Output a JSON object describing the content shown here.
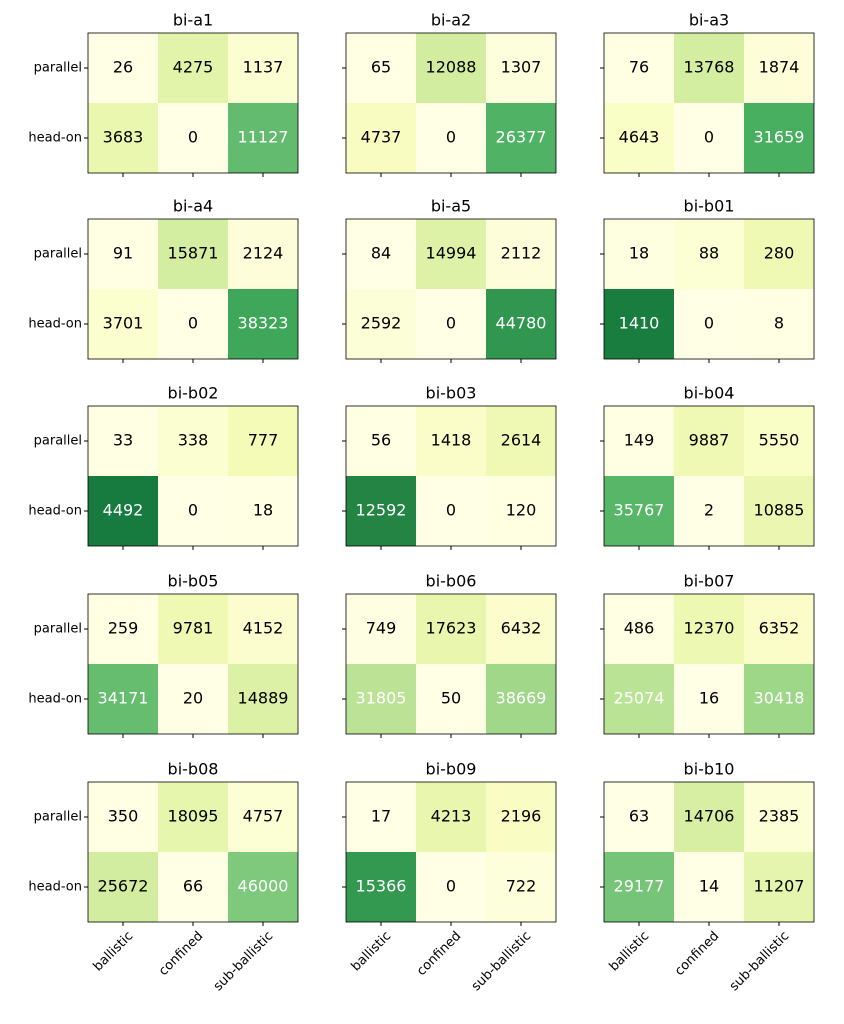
{
  "chart_data": [
    {
      "type": "heatmap",
      "title": "bi-a1",
      "colormap": "YlGn",
      "y_categories": [
        "parallel",
        "head-on"
      ],
      "values": [
        [
          26,
          4275,
          1137
        ],
        [
          3683,
          0,
          11127
        ]
      ]
    },
    {
      "type": "heatmap",
      "title": "bi-a2",
      "colormap": "YlGn",
      "values": [
        [
          65,
          12088,
          1307
        ],
        [
          4737,
          0,
          26377
        ]
      ]
    },
    {
      "type": "heatmap",
      "title": "bi-a3",
      "colormap": "YlGn",
      "values": [
        [
          76,
          13768,
          1874
        ],
        [
          4643,
          0,
          31659
        ]
      ]
    },
    {
      "type": "heatmap",
      "title": "bi-a4",
      "colormap": "YlGn",
      "y_categories": [
        "parallel",
        "head-on"
      ],
      "values": [
        [
          91,
          15871,
          2124
        ],
        [
          3701,
          0,
          38323
        ]
      ]
    },
    {
      "type": "heatmap",
      "title": "bi-a5",
      "colormap": "YlGn",
      "values": [
        [
          84,
          14994,
          2112
        ],
        [
          2592,
          0,
          44780
        ]
      ]
    },
    {
      "type": "heatmap",
      "title": "bi-b01",
      "colormap": "YlGn",
      "values": [
        [
          18,
          88,
          280
        ],
        [
          1410,
          0,
          8
        ]
      ]
    },
    {
      "type": "heatmap",
      "title": "bi-b02",
      "colormap": "YlGn",
      "y_categories": [
        "parallel",
        "head-on"
      ],
      "values": [
        [
          33,
          338,
          777
        ],
        [
          4492,
          0,
          18
        ]
      ]
    },
    {
      "type": "heatmap",
      "title": "bi-b03",
      "colormap": "YlGn",
      "values": [
        [
          56,
          1418,
          2614
        ],
        [
          12592,
          0,
          120
        ]
      ]
    },
    {
      "type": "heatmap",
      "title": "bi-b04",
      "colormap": "YlGn",
      "values": [
        [
          149,
          9887,
          5550
        ],
        [
          35767,
          2,
          10885
        ]
      ]
    },
    {
      "type": "heatmap",
      "title": "bi-b05",
      "colormap": "YlGn",
      "y_categories": [
        "parallel",
        "head-on"
      ],
      "values": [
        [
          259,
          9781,
          4152
        ],
        [
          34171,
          20,
          14889
        ]
      ]
    },
    {
      "type": "heatmap",
      "title": "bi-b06",
      "colormap": "YlGn",
      "values": [
        [
          749,
          17623,
          6432
        ],
        [
          31805,
          50,
          38669
        ]
      ]
    },
    {
      "type": "heatmap",
      "title": "bi-b07",
      "colormap": "YlGn",
      "values": [
        [
          486,
          12370,
          6352
        ],
        [
          25074,
          16,
          30418
        ]
      ]
    },
    {
      "type": "heatmap",
      "title": "bi-b08",
      "colormap": "YlGn",
      "y_categories": [
        "parallel",
        "head-on"
      ],
      "x_categories": [
        "ballistic",
        "confined",
        "sub-ballistic"
      ],
      "values": [
        [
          350,
          18095,
          4757
        ],
        [
          25672,
          66,
          46000
        ]
      ]
    },
    {
      "type": "heatmap",
      "title": "bi-b09",
      "colormap": "YlGn",
      "x_categories": [
        "ballistic",
        "confined",
        "sub-ballistic"
      ],
      "values": [
        [
          17,
          4213,
          2196
        ],
        [
          15366,
          0,
          722
        ]
      ]
    },
    {
      "type": "heatmap",
      "title": "bi-b10",
      "colormap": "YlGn",
      "x_categories": [
        "ballistic",
        "confined",
        "sub-ballistic"
      ],
      "values": [
        [
          63,
          14706,
          2385
        ],
        [
          29177,
          14,
          11207
        ]
      ]
    }
  ]
}
